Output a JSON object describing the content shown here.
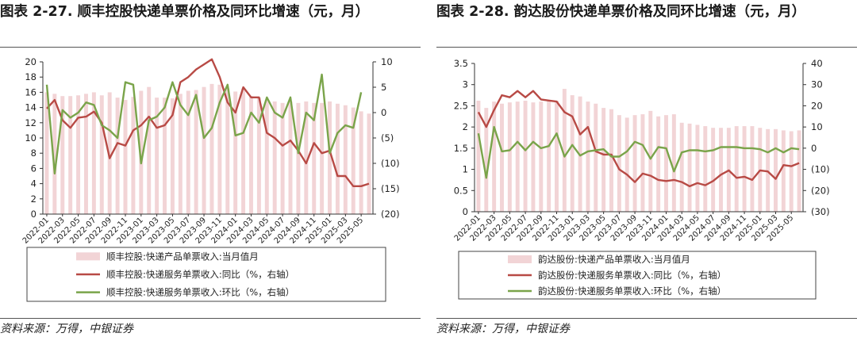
{
  "source_text": "资料来源：万得，中银证券",
  "charts": [
    {
      "title": "图表 2-27. 顺丰控股快递单票价格及同环比增速（元，月）"
    },
    {
      "title": "图表 2-28. 韵达股份快递单票价格及同环比增速（元，月）"
    }
  ],
  "chart_data": [
    {
      "type": "bar",
      "title": "图表 2-27. 顺丰控股快递单票价格及同环比增速（元，月）",
      "x": [
        "2022-01",
        "2022-02",
        "2022-03",
        "2022-04",
        "2022-05",
        "2022-06",
        "2022-07",
        "2022-08",
        "2022-09",
        "2022-10",
        "2022-11",
        "2022-12",
        "2023-01",
        "2023-02",
        "2023-03",
        "2023-04",
        "2023-05",
        "2023-06",
        "2023-07",
        "2023-08",
        "2023-09",
        "2023-10",
        "2023-11",
        "2023-12",
        "2024-01",
        "2024-02",
        "2024-03",
        "2024-04",
        "2024-05",
        "2024-06",
        "2024-07",
        "2024-08",
        "2024-09",
        "2024-10",
        "2024-11",
        "2024-12",
        "2025-01",
        "2025-02",
        "2025-03",
        "2025-04",
        "2025-05",
        "2025-06"
      ],
      "x_tick_labels": [
        "2022-01",
        "2022-03",
        "2022-05",
        "2022-07",
        "2022-09",
        "2022-11",
        "2023-01",
        "2023-03",
        "2023-05",
        "2023-07",
        "2023-09",
        "2023-11",
        "2024-01",
        "2024-03",
        "2024-05",
        "2024-07",
        "2024-09",
        "2024-11",
        "2025-01",
        "2025-03",
        "2025-05"
      ],
      "y_left_ticks": [
        "0",
        "2",
        "4",
        "6",
        "8",
        "10",
        "12",
        "14",
        "16",
        "18",
        "20"
      ],
      "y_right_ticks": [
        "(20)",
        "(15)",
        "(10)",
        "(5)",
        "0",
        "5",
        "10"
      ],
      "ylim_left": [
        0,
        20
      ],
      "ylim_right": [
        -20,
        10
      ],
      "series": [
        {
          "name": "顺丰控股:快递产品单票收入:当月值月",
          "kind": "bar",
          "axis": "left",
          "color": "#f2d4d6",
          "values": [
            16.0,
            15.8,
            15.5,
            15.5,
            15.6,
            15.8,
            16.0,
            15.6,
            16.0,
            15.3,
            15.0,
            15.4,
            16.2,
            16.7,
            15.3,
            15.3,
            15.2,
            15.8,
            16.2,
            16.3,
            16.7,
            17.1,
            17.0,
            16.5,
            16.1,
            16.5,
            15.5,
            15.3,
            15.0,
            14.8,
            14.6,
            14.8,
            14.6,
            14.8,
            14.6,
            14.6,
            14.8,
            14.5,
            14.3,
            14.0,
            13.5,
            13.2
          ]
        },
        {
          "name": "顺丰控股:快递服务单票收入:同比（%，右轴）",
          "kind": "line",
          "axis": "right",
          "color": "#b84a45",
          "values": [
            0.8,
            2.5,
            -1.5,
            -3.0,
            -1.0,
            -0.8,
            0.2,
            -2.0,
            -9.0,
            -6.0,
            -6.5,
            -3.5,
            -2.5,
            -0.8,
            -3.0,
            -2.5,
            -0.5,
            6.0,
            7.0,
            8.5,
            9.5,
            10.5,
            7.0,
            2.0,
            0.0,
            5.0,
            3.0,
            3.0,
            -4.0,
            -5.0,
            -6.5,
            -5.5,
            -7.5,
            -10.0,
            -6.0,
            -8.0,
            -7.5,
            -12.5,
            -12.5,
            -14.5,
            -14.5,
            -14.0
          ]
        },
        {
          "name": "顺丰控股:快递服务单票收入:环比（%，右轴）",
          "kind": "line",
          "axis": "right",
          "color": "#7aa44a",
          "values": [
            5.5,
            -12.0,
            0.5,
            -1.0,
            0.0,
            2.0,
            1.5,
            -2.5,
            -3.5,
            -5.0,
            6.0,
            5.5,
            -10.0,
            -1.5,
            -0.8,
            1.0,
            6.0,
            1.5,
            -0.5,
            3.5,
            -5.0,
            -3.0,
            2.0,
            5.5,
            -4.5,
            -4.0,
            0.0,
            -2.0,
            3.0,
            0.0,
            -1.0,
            3.0,
            -8.0,
            0.0,
            -1.5,
            7.5,
            -8.0,
            -4.0,
            -2.5,
            -3.0,
            4.0,
            null
          ]
        }
      ]
    },
    {
      "type": "bar",
      "title": "图表 2-28. 韵达股份快递单票价格及同环比增速（元，月）",
      "x": [
        "2022-01",
        "2022-02",
        "2022-03",
        "2022-04",
        "2022-05",
        "2022-06",
        "2022-07",
        "2022-08",
        "2022-09",
        "2022-10",
        "2022-11",
        "2022-12",
        "2023-01",
        "2023-02",
        "2023-03",
        "2023-04",
        "2023-05",
        "2023-06",
        "2023-07",
        "2023-08",
        "2023-09",
        "2023-10",
        "2023-11",
        "2023-12",
        "2024-01",
        "2024-02",
        "2024-03",
        "2024-04",
        "2024-05",
        "2024-06",
        "2024-07",
        "2024-08",
        "2024-09",
        "2024-10",
        "2024-11",
        "2024-12",
        "2025-01",
        "2025-02",
        "2025-03",
        "2025-04",
        "2025-05",
        "2025-06"
      ],
      "x_tick_labels": [
        "2022-01",
        "2022-03",
        "2022-05",
        "2022-07",
        "2022-09",
        "2022-11",
        "2023-01",
        "2023-03",
        "2023-05",
        "2023-07",
        "2023-09",
        "2023-11",
        "2024-01",
        "2024-03",
        "2024-05",
        "2024-07",
        "2024-09",
        "2024-11",
        "2025-01",
        "2025-03",
        "2025-05"
      ],
      "y_left_ticks": [
        "0",
        "0.5",
        "1",
        "1.5",
        "2",
        "2.5",
        "3",
        "3.5"
      ],
      "y_right_ticks": [
        "(30)",
        "(20)",
        "(10)",
        "0",
        "10",
        "20",
        "30",
        "40"
      ],
      "ylim_left": [
        0,
        3.5
      ],
      "ylim_right": [
        -30,
        40
      ],
      "series": [
        {
          "name": "韵达股份:快递产品单票收入:当月值月",
          "kind": "bar",
          "axis": "left",
          "color": "#f2d4d6",
          "values": [
            2.62,
            2.45,
            2.6,
            2.55,
            2.58,
            2.6,
            2.62,
            2.58,
            2.6,
            2.62,
            2.62,
            2.9,
            2.75,
            2.72,
            2.6,
            2.55,
            2.45,
            2.42,
            2.28,
            2.22,
            2.28,
            2.3,
            2.38,
            2.25,
            2.28,
            2.3,
            2.1,
            2.08,
            2.05,
            2.02,
            1.98,
            1.98,
            1.98,
            2.02,
            2.02,
            2.02,
            1.98,
            1.95,
            1.95,
            1.92,
            1.9,
            1.92
          ]
        },
        {
          "name": "韵达股份:快递服务单票收入:同比（%，右轴）",
          "kind": "line",
          "axis": "right",
          "color": "#b84a45",
          "values": [
            17.0,
            10.0,
            18.0,
            25.0,
            24.0,
            27.0,
            24.0,
            27.0,
            23.0,
            22.5,
            22.0,
            17.0,
            15.0,
            6.5,
            10.0,
            -1.5,
            -3.0,
            -3.0,
            -10.0,
            -12.5,
            -16.0,
            -12.0,
            -13.0,
            -15.0,
            -15.5,
            -15.0,
            -16.0,
            -18.0,
            -16.5,
            -17.5,
            -15.5,
            -12.5,
            -10.5,
            -14.0,
            -13.5,
            -15.0,
            -10.5,
            -11.0,
            -14.5,
            -8.0,
            -8.5,
            -7.0
          ]
        },
        {
          "name": "韵达股份:快递服务单票收入:环比（%，右轴）",
          "kind": "line",
          "axis": "right",
          "color": "#7aa44a",
          "values": [
            7.0,
            -14.0,
            10.0,
            -1.5,
            -1.0,
            3.0,
            -1.0,
            3.0,
            0.0,
            1.0,
            7.0,
            -4.0,
            1.5,
            -3.5,
            -1.5,
            -1.0,
            -0.5,
            -4.0,
            -4.0,
            -1.5,
            3.0,
            1.5,
            -5.0,
            0.5,
            0.0,
            -11.0,
            -2.0,
            -1.0,
            -1.0,
            -1.5,
            -1.0,
            0.5,
            0.5,
            0.5,
            0.0,
            0.0,
            -0.5,
            -2.0,
            0.0,
            -2.0,
            0.0,
            -0.5
          ]
        }
      ]
    }
  ]
}
